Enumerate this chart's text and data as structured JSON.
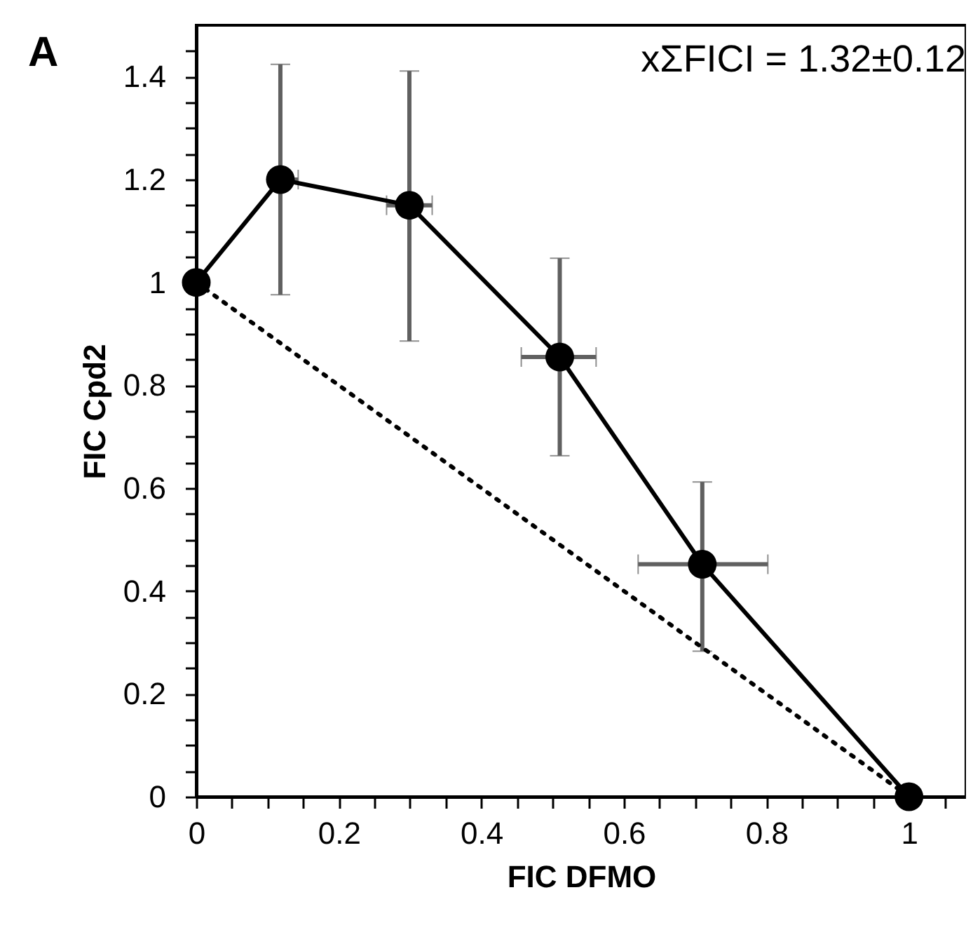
{
  "chart_data": {
    "type": "line",
    "xlabel": "FIC DFMO",
    "ylabel": "FIC Cpd2",
    "annotations": [
      "A",
      "xΣFICI = 1.32±0.12"
    ],
    "x": [
      0,
      0.118,
      0.299,
      0.51,
      0.71,
      1
    ],
    "series": [
      {
        "color": "#000000",
        "values": [
          1,
          1.2,
          1.15,
          0.855,
          0.452,
          0
        ],
        "marker": "circle",
        "line_style": "solid",
        "errors": [
          null,
          [
            0.976,
            1.424
          ],
          [
            0.886,
            1.411
          ],
          [
            0.663,
            1.047
          ],
          [
            0.283,
            0.612
          ],
          null
        ],
        "xerrors": [
          null,
          [
            0.118,
            0.143
          ],
          [
            0.267,
            0.331
          ],
          [
            0.456,
            0.561
          ],
          [
            0.62,
            0.802
          ],
          null
        ]
      },
      {
        "type": "line",
        "color": "#000000",
        "x": [
          0,
          1
        ],
        "values": [
          1,
          0
        ],
        "marker": "none",
        "line_style": "dotted"
      }
    ],
    "xlim": [
      0,
      1.08
    ],
    "ylim": [
      0,
      1.5
    ],
    "xticks": [
      0,
      {
        "value": 0.05,
        "label": null
      },
      0.2,
      {
        "value": 0.1,
        "label": null
      },
      {
        "value": 0.15,
        "label": null
      },
      {
        "value": 0.25,
        "label": null
      },
      {
        "value": 0.3,
        "label": null
      },
      {
        "value": 0.35,
        "label": null
      },
      0.4,
      {
        "value": 0.45,
        "label": null
      },
      {
        "value": 0.5,
        "label": null
      },
      {
        "value": 0.55,
        "label": null
      },
      0.6,
      {
        "value": 0.65,
        "label": null
      },
      {
        "value": 0.7,
        "label": null
      },
      {
        "value": 0.75,
        "label": null
      },
      0.8,
      {
        "value": 0.85,
        "label": null
      },
      {
        "value": 0.9,
        "label": null
      },
      {
        "value": 0.95,
        "label": null
      },
      1,
      {
        "value": 1.05,
        "label": null
      }
    ],
    "yticks": [
      0,
      {
        "value": 0.05,
        "label": null
      },
      {
        "value": 0.1,
        "label": null
      },
      {
        "value": 0.15,
        "label": null
      },
      0.2,
      {
        "value": 0.25,
        "label": null
      },
      {
        "value": 0.3,
        "label": null
      },
      {
        "value": 0.35,
        "label": null
      },
      0.4,
      {
        "value": 0.45,
        "label": null
      },
      {
        "value": 0.5,
        "label": null
      },
      {
        "value": 0.55,
        "label": null
      },
      0.6,
      {
        "value": 0.65,
        "label": null
      },
      {
        "value": 0.7,
        "label": null
      },
      {
        "value": 0.75,
        "label": null
      },
      0.8,
      {
        "value": 0.85,
        "label": null
      },
      {
        "value": 0.9,
        "label": null
      },
      {
        "value": 0.95,
        "label": null
      },
      1,
      {
        "value": 1.05,
        "label": null
      },
      {
        "value": 1.1,
        "label": null
      },
      {
        "value": 1.15,
        "label": null
      },
      1.2,
      {
        "value": 1.25,
        "label": null
      },
      {
        "value": 1.3,
        "label": null
      },
      {
        "value": 1.35,
        "label": null
      },
      1.4,
      {
        "value": 1.45,
        "label": null
      }
    ],
    "grid": false
  }
}
